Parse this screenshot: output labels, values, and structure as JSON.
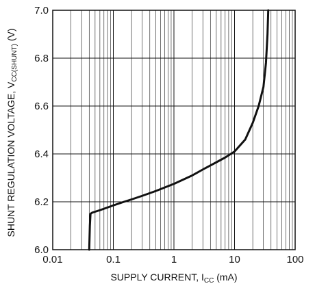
{
  "chart_data": {
    "type": "line",
    "xscale": "log",
    "xlim": [
      0.01,
      100
    ],
    "ylim": [
      6.0,
      7.0
    ],
    "grid": true,
    "xlabel": {
      "main": "SUPPLY CURRENT, I",
      "sub": "CC",
      "unit": " (mA)"
    },
    "ylabel": {
      "main": "SHUNT REGULATION VOLTAGE, V",
      "sub": "CC(SHUNT)",
      "unit": " (V)"
    },
    "x_ticks": [
      {
        "value": 0.01,
        "label": "0.01"
      },
      {
        "value": 0.1,
        "label": "0.1"
      },
      {
        "value": 1,
        "label": "1"
      },
      {
        "value": 10,
        "label": "10"
      },
      {
        "value": 100,
        "label": "100"
      }
    ],
    "y_ticks": [
      {
        "value": 6.0,
        "label": "6.0"
      },
      {
        "value": 6.2,
        "label": "6.2"
      },
      {
        "value": 6.4,
        "label": "6.4"
      },
      {
        "value": 6.6,
        "label": "6.6"
      },
      {
        "value": 6.8,
        "label": "6.8"
      },
      {
        "value": 7.0,
        "label": "7.0"
      }
    ],
    "series": [
      {
        "color": "#111111",
        "x": [
          0.04,
          0.041,
          0.042,
          0.045,
          0.06,
          0.1,
          0.15,
          0.2,
          0.3,
          0.5,
          1,
          2,
          3,
          5,
          7,
          10,
          15,
          20,
          25,
          30,
          33,
          35,
          36
        ],
        "y": [
          6.0,
          6.1,
          6.15,
          6.155,
          6.165,
          6.185,
          6.2,
          6.21,
          6.225,
          6.245,
          6.275,
          6.31,
          6.335,
          6.365,
          6.385,
          6.41,
          6.46,
          6.53,
          6.6,
          6.68,
          6.78,
          6.9,
          7.0
        ]
      }
    ]
  }
}
